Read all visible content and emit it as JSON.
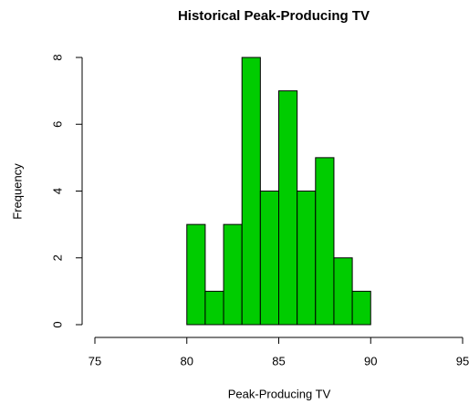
{
  "chart_data": {
    "type": "histogram",
    "title": "Historical Peak-Producing TV",
    "x_label": "Peak-Producing TV",
    "y_label": "Frequency",
    "bins": [
      80,
      81,
      82,
      83,
      84,
      85,
      86,
      87,
      88,
      89,
      90
    ],
    "values": [
      3,
      1,
      3,
      8,
      4,
      7,
      4,
      5,
      2,
      1
    ],
    "color": "#00cc00",
    "xlim": [
      75,
      95
    ],
    "xticks": [
      75,
      80,
      85,
      90,
      95
    ],
    "ylim": [
      0,
      8
    ],
    "yticks": [
      0,
      2,
      4,
      6,
      8
    ]
  }
}
